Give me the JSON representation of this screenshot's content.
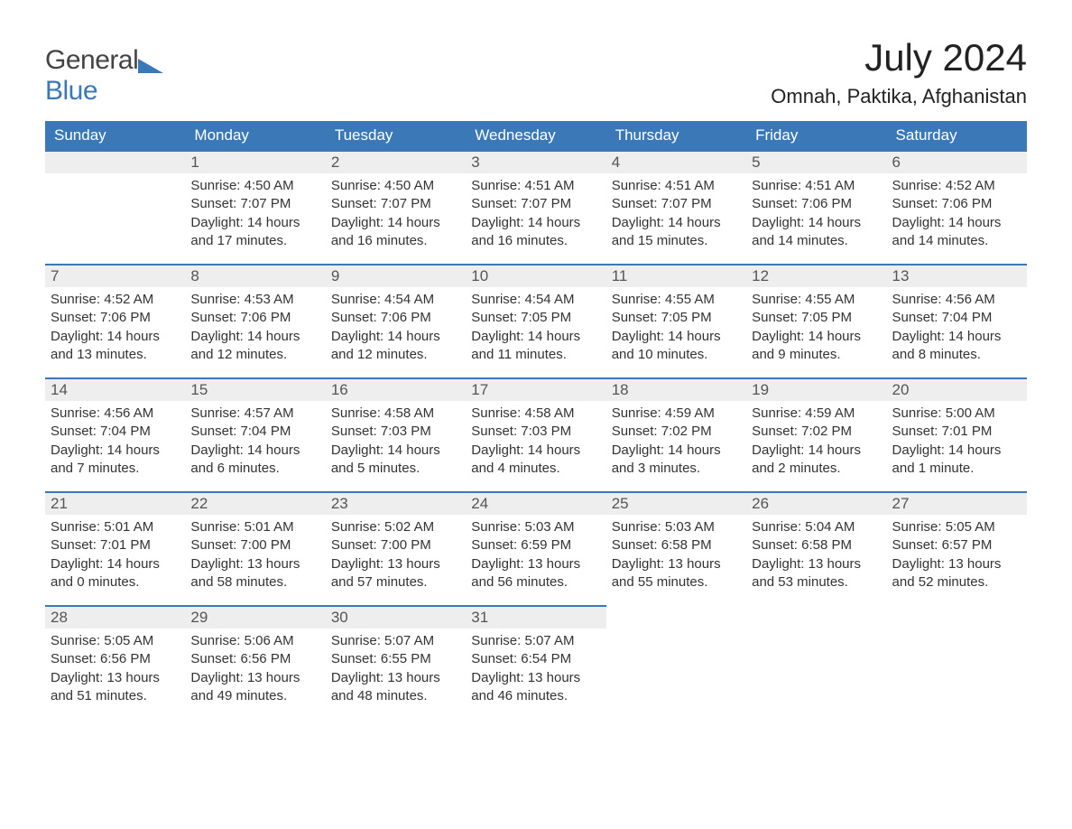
{
  "logo": {
    "top": "General",
    "bottom": "Blue"
  },
  "title": "July 2024",
  "location": "Omnah, Paktika, Afghanistan",
  "colors": {
    "header_bg": "#3a78b8",
    "header_text": "#ffffff",
    "day_stripe_bg": "#eeeeee",
    "day_stripe_border": "#3a78b8",
    "body_text": "#333333",
    "page_bg": "#ffffff",
    "logo_gray": "#444444",
    "logo_blue": "#3a78b8"
  },
  "day_headers": [
    "Sunday",
    "Monday",
    "Tuesday",
    "Wednesday",
    "Thursday",
    "Friday",
    "Saturday"
  ],
  "weeks": [
    [
      null,
      {
        "n": "1",
        "sr": "Sunrise: 4:50 AM",
        "ss": "Sunset: 7:07 PM",
        "dl1": "Daylight: 14 hours",
        "dl2": "and 17 minutes."
      },
      {
        "n": "2",
        "sr": "Sunrise: 4:50 AM",
        "ss": "Sunset: 7:07 PM",
        "dl1": "Daylight: 14 hours",
        "dl2": "and 16 minutes."
      },
      {
        "n": "3",
        "sr": "Sunrise: 4:51 AM",
        "ss": "Sunset: 7:07 PM",
        "dl1": "Daylight: 14 hours",
        "dl2": "and 16 minutes."
      },
      {
        "n": "4",
        "sr": "Sunrise: 4:51 AM",
        "ss": "Sunset: 7:07 PM",
        "dl1": "Daylight: 14 hours",
        "dl2": "and 15 minutes."
      },
      {
        "n": "5",
        "sr": "Sunrise: 4:51 AM",
        "ss": "Sunset: 7:06 PM",
        "dl1": "Daylight: 14 hours",
        "dl2": "and 14 minutes."
      },
      {
        "n": "6",
        "sr": "Sunrise: 4:52 AM",
        "ss": "Sunset: 7:06 PM",
        "dl1": "Daylight: 14 hours",
        "dl2": "and 14 minutes."
      }
    ],
    [
      {
        "n": "7",
        "sr": "Sunrise: 4:52 AM",
        "ss": "Sunset: 7:06 PM",
        "dl1": "Daylight: 14 hours",
        "dl2": "and 13 minutes."
      },
      {
        "n": "8",
        "sr": "Sunrise: 4:53 AM",
        "ss": "Sunset: 7:06 PM",
        "dl1": "Daylight: 14 hours",
        "dl2": "and 12 minutes."
      },
      {
        "n": "9",
        "sr": "Sunrise: 4:54 AM",
        "ss": "Sunset: 7:06 PM",
        "dl1": "Daylight: 14 hours",
        "dl2": "and 12 minutes."
      },
      {
        "n": "10",
        "sr": "Sunrise: 4:54 AM",
        "ss": "Sunset: 7:05 PM",
        "dl1": "Daylight: 14 hours",
        "dl2": "and 11 minutes."
      },
      {
        "n": "11",
        "sr": "Sunrise: 4:55 AM",
        "ss": "Sunset: 7:05 PM",
        "dl1": "Daylight: 14 hours",
        "dl2": "and 10 minutes."
      },
      {
        "n": "12",
        "sr": "Sunrise: 4:55 AM",
        "ss": "Sunset: 7:05 PM",
        "dl1": "Daylight: 14 hours",
        "dl2": "and 9 minutes."
      },
      {
        "n": "13",
        "sr": "Sunrise: 4:56 AM",
        "ss": "Sunset: 7:04 PM",
        "dl1": "Daylight: 14 hours",
        "dl2": "and 8 minutes."
      }
    ],
    [
      {
        "n": "14",
        "sr": "Sunrise: 4:56 AM",
        "ss": "Sunset: 7:04 PM",
        "dl1": "Daylight: 14 hours",
        "dl2": "and 7 minutes."
      },
      {
        "n": "15",
        "sr": "Sunrise: 4:57 AM",
        "ss": "Sunset: 7:04 PM",
        "dl1": "Daylight: 14 hours",
        "dl2": "and 6 minutes."
      },
      {
        "n": "16",
        "sr": "Sunrise: 4:58 AM",
        "ss": "Sunset: 7:03 PM",
        "dl1": "Daylight: 14 hours",
        "dl2": "and 5 minutes."
      },
      {
        "n": "17",
        "sr": "Sunrise: 4:58 AM",
        "ss": "Sunset: 7:03 PM",
        "dl1": "Daylight: 14 hours",
        "dl2": "and 4 minutes."
      },
      {
        "n": "18",
        "sr": "Sunrise: 4:59 AM",
        "ss": "Sunset: 7:02 PM",
        "dl1": "Daylight: 14 hours",
        "dl2": "and 3 minutes."
      },
      {
        "n": "19",
        "sr": "Sunrise: 4:59 AM",
        "ss": "Sunset: 7:02 PM",
        "dl1": "Daylight: 14 hours",
        "dl2": "and 2 minutes."
      },
      {
        "n": "20",
        "sr": "Sunrise: 5:00 AM",
        "ss": "Sunset: 7:01 PM",
        "dl1": "Daylight: 14 hours",
        "dl2": "and 1 minute."
      }
    ],
    [
      {
        "n": "21",
        "sr": "Sunrise: 5:01 AM",
        "ss": "Sunset: 7:01 PM",
        "dl1": "Daylight: 14 hours",
        "dl2": "and 0 minutes."
      },
      {
        "n": "22",
        "sr": "Sunrise: 5:01 AM",
        "ss": "Sunset: 7:00 PM",
        "dl1": "Daylight: 13 hours",
        "dl2": "and 58 minutes."
      },
      {
        "n": "23",
        "sr": "Sunrise: 5:02 AM",
        "ss": "Sunset: 7:00 PM",
        "dl1": "Daylight: 13 hours",
        "dl2": "and 57 minutes."
      },
      {
        "n": "24",
        "sr": "Sunrise: 5:03 AM",
        "ss": "Sunset: 6:59 PM",
        "dl1": "Daylight: 13 hours",
        "dl2": "and 56 minutes."
      },
      {
        "n": "25",
        "sr": "Sunrise: 5:03 AM",
        "ss": "Sunset: 6:58 PM",
        "dl1": "Daylight: 13 hours",
        "dl2": "and 55 minutes."
      },
      {
        "n": "26",
        "sr": "Sunrise: 5:04 AM",
        "ss": "Sunset: 6:58 PM",
        "dl1": "Daylight: 13 hours",
        "dl2": "and 53 minutes."
      },
      {
        "n": "27",
        "sr": "Sunrise: 5:05 AM",
        "ss": "Sunset: 6:57 PM",
        "dl1": "Daylight: 13 hours",
        "dl2": "and 52 minutes."
      }
    ],
    [
      {
        "n": "28",
        "sr": "Sunrise: 5:05 AM",
        "ss": "Sunset: 6:56 PM",
        "dl1": "Daylight: 13 hours",
        "dl2": "and 51 minutes."
      },
      {
        "n": "29",
        "sr": "Sunrise: 5:06 AM",
        "ss": "Sunset: 6:56 PM",
        "dl1": "Daylight: 13 hours",
        "dl2": "and 49 minutes."
      },
      {
        "n": "30",
        "sr": "Sunrise: 5:07 AM",
        "ss": "Sunset: 6:55 PM",
        "dl1": "Daylight: 13 hours",
        "dl2": "and 48 minutes."
      },
      {
        "n": "31",
        "sr": "Sunrise: 5:07 AM",
        "ss": "Sunset: 6:54 PM",
        "dl1": "Daylight: 13 hours",
        "dl2": "and 46 minutes."
      },
      null,
      null,
      null
    ]
  ]
}
